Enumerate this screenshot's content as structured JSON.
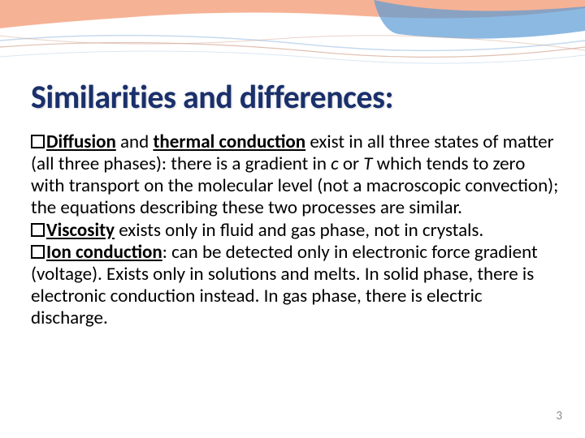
{
  "title": "Similarities and differences:",
  "bullets": [
    {
      "parts": [
        {
          "text": "Diffusion",
          "style": "underline"
        },
        {
          "text": " and ",
          "style": "plain"
        },
        {
          "text": "thermal conduction",
          "style": "underline"
        },
        {
          "text": " exist in all three states of matter (all three phases): there is a gradient in ",
          "style": "plain"
        },
        {
          "text": "c",
          "style": "italic"
        },
        {
          "text": " or ",
          "style": "plain"
        },
        {
          "text": "T",
          "style": "italic"
        },
        {
          "text": " which tends to zero with transport on the molecular level (not a macroscopic convection); the equations describing these two processes are similar.",
          "style": "plain"
        }
      ]
    },
    {
      "parts": [
        {
          "text": "Viscosity",
          "style": "underline"
        },
        {
          "text": " exists only in fluid and gas phase, not in crystals.",
          "style": "plain"
        }
      ]
    },
    {
      "parts": [
        {
          "text": "Ion conduction",
          "style": "underline"
        },
        {
          "text": ": can be detected only in electronic force gradient (voltage). Exists only in solutions and melts. In solid phase, there is electronic conduction instead. In gas phase, there is electric discharge.",
          "style": "plain"
        }
      ]
    }
  ],
  "page_number": "3",
  "decoration": {
    "wave_top_color": "#f4a582",
    "wave_bottom_color": "#5b9bd5",
    "line_color_1": "#c0d6ed",
    "line_color_2": "#d4a591",
    "background": "#ffffff"
  },
  "styling": {
    "title_color": "#1a306c",
    "title_fontsize": 40,
    "body_fontsize": 23,
    "body_color": "#000000",
    "pagenum_color": "#8a8a8a",
    "pagenum_fontsize": 15
  }
}
